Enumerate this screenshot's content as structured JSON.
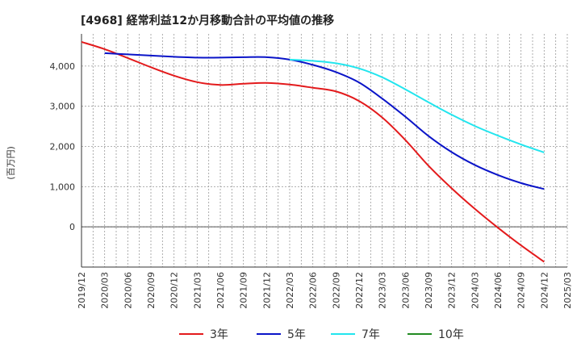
{
  "chart_data": {
    "type": "line",
    "title": "[4968]  経常利益12か月移動合計の平均値の推移",
    "ylabel": "(百万円)",
    "xlabel": "",
    "ylim": [
      -1000,
      4800
    ],
    "yticks": [
      0,
      1000,
      2000,
      3000,
      4000
    ],
    "ytick_labels": [
      "0",
      "1,000",
      "2,000",
      "3,000",
      "4,000"
    ],
    "x_ticks": [
      "2019/12",
      "2020/03",
      "2020/06",
      "2020/09",
      "2020/12",
      "2021/03",
      "2021/06",
      "2021/09",
      "2021/12",
      "2022/03",
      "2022/06",
      "2022/09",
      "2022/12",
      "2023/03",
      "2023/06",
      "2023/09",
      "2023/12",
      "2024/03",
      "2024/06",
      "2024/09",
      "2024/12",
      "2025/03"
    ],
    "grid": true,
    "legend": "bottom",
    "series": [
      {
        "name": "3年",
        "color": "#e31a1c",
        "values": [
          [
            "2019/12",
            4600
          ],
          [
            "2020/03",
            4420
          ],
          [
            "2020/06",
            4200
          ],
          [
            "2020/09",
            3970
          ],
          [
            "2020/12",
            3760
          ],
          [
            "2021/03",
            3600
          ],
          [
            "2021/06",
            3530
          ],
          [
            "2021/09",
            3560
          ],
          [
            "2021/12",
            3580
          ],
          [
            "2022/03",
            3540
          ],
          [
            "2022/06",
            3460
          ],
          [
            "2022/09",
            3370
          ],
          [
            "2022/12",
            3130
          ],
          [
            "2023/03",
            2720
          ],
          [
            "2023/06",
            2160
          ],
          [
            "2023/09",
            1520
          ],
          [
            "2023/12",
            960
          ],
          [
            "2024/03",
            450
          ],
          [
            "2024/06",
            -20
          ],
          [
            "2024/09",
            -460
          ],
          [
            "2024/12",
            -870
          ]
        ]
      },
      {
        "name": "5年",
        "color": "#0a14c8",
        "values": [
          [
            "2020/03",
            4320
          ],
          [
            "2020/06",
            4290
          ],
          [
            "2020/09",
            4260
          ],
          [
            "2020/12",
            4230
          ],
          [
            "2021/03",
            4210
          ],
          [
            "2021/06",
            4210
          ],
          [
            "2021/09",
            4220
          ],
          [
            "2021/12",
            4220
          ],
          [
            "2022/03",
            4160
          ],
          [
            "2022/06",
            4030
          ],
          [
            "2022/09",
            3850
          ],
          [
            "2022/12",
            3590
          ],
          [
            "2023/03",
            3190
          ],
          [
            "2023/06",
            2740
          ],
          [
            "2023/09",
            2260
          ],
          [
            "2023/12",
            1860
          ],
          [
            "2024/03",
            1540
          ],
          [
            "2024/06",
            1290
          ],
          [
            "2024/09",
            1090
          ],
          [
            "2024/12",
            940
          ]
        ]
      },
      {
        "name": "7年",
        "color": "#22e5ee",
        "values": [
          [
            "2022/03",
            4160
          ],
          [
            "2022/06",
            4130
          ],
          [
            "2022/09",
            4070
          ],
          [
            "2022/12",
            3940
          ],
          [
            "2023/03",
            3720
          ],
          [
            "2023/06",
            3420
          ],
          [
            "2023/09",
            3100
          ],
          [
            "2023/12",
            2790
          ],
          [
            "2024/03",
            2510
          ],
          [
            "2024/06",
            2270
          ],
          [
            "2024/09",
            2050
          ],
          [
            "2024/12",
            1850
          ]
        ]
      },
      {
        "name": "10年",
        "color": "#228b22",
        "values": []
      }
    ]
  }
}
